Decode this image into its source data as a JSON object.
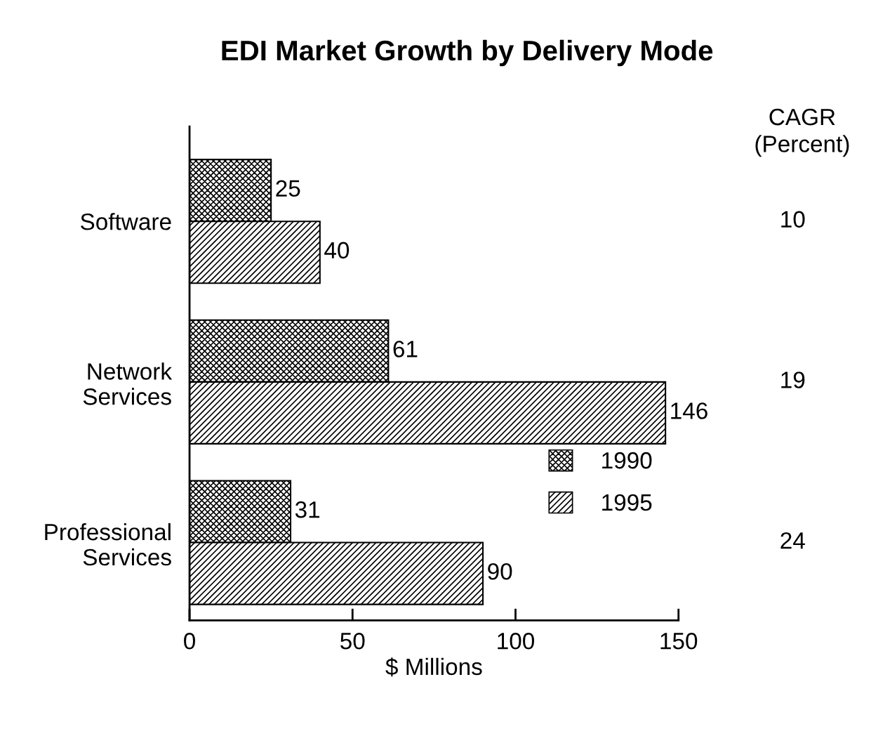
{
  "chart_data": {
    "type": "bar",
    "orientation": "horizontal",
    "title": "EDI Market Growth by Delivery Mode",
    "xlabel": "$ Millions",
    "categories": [
      "Software",
      "Network Services",
      "Professional Services"
    ],
    "series": [
      {
        "name": "1990",
        "color": "#000000",
        "values": [
          25,
          61,
          31
        ]
      },
      {
        "name": "1995",
        "color": "#000000",
        "values": [
          40,
          146,
          90
        ]
      }
    ],
    "xlim": [
      0,
      150
    ],
    "xticks": [
      0,
      50,
      100,
      150
    ],
    "grid": false,
    "legend": "bottom right",
    "data_labels": true,
    "annotations": [
      "CAGR\n(Percent)",
      "10",
      "19",
      "24"
    ]
  }
}
